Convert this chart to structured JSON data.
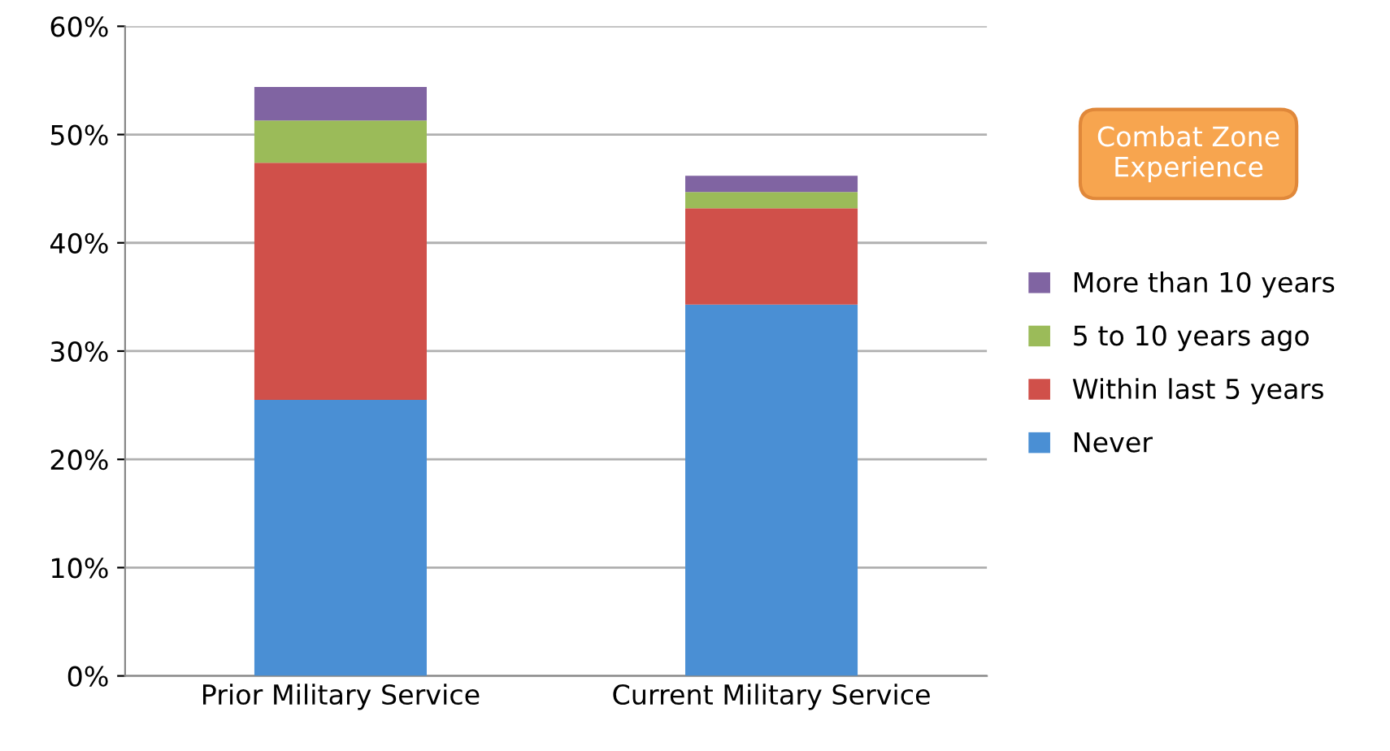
{
  "chart_data": {
    "type": "bar",
    "stacked": true,
    "legend_title": "Combat Zone Experience",
    "legend": "right",
    "categories": [
      "Prior Military Service",
      "Current Military Service"
    ],
    "series": [
      {
        "name": "Never",
        "color": "#4a8fd4",
        "values": [
          25.5,
          34.3
        ]
      },
      {
        "name": "Within last 5 years",
        "color": "#d0504a",
        "values": [
          21.9,
          8.9
        ]
      },
      {
        "name": "5 to 10 years ago",
        "color": "#9bbb59",
        "values": [
          3.9,
          1.5
        ]
      },
      {
        "name": "More than 10 years",
        "color": "#8064a2",
        "values": [
          3.1,
          1.5
        ]
      }
    ],
    "ylim": [
      0,
      60
    ],
    "yticks": [
      {
        "value": 0,
        "label": "0%"
      },
      {
        "value": 10,
        "label": "10%"
      },
      {
        "value": 20,
        "label": "20%"
      },
      {
        "value": 30,
        "label": "30%"
      },
      {
        "value": 40,
        "label": "40%"
      },
      {
        "value": 50,
        "label": "50%"
      },
      {
        "value": 60,
        "label": "60%"
      }
    ],
    "grid": "y"
  }
}
